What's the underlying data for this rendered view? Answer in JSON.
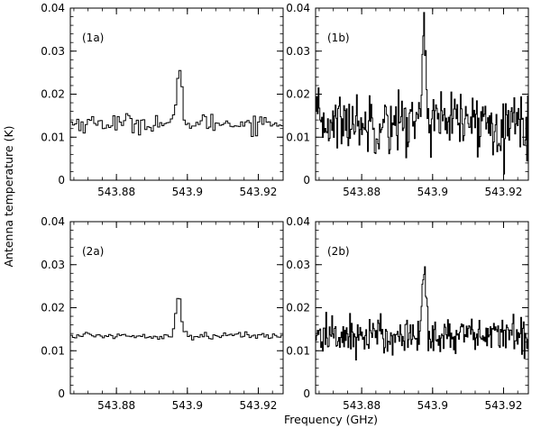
{
  "figure": {
    "xlabel": "Frequency (GHz)",
    "ylabel": "Antenna temperature (K)"
  },
  "chart_data": [
    {
      "type": "line",
      "step": true,
      "panel_label": "(1a)",
      "xlim": [
        543.867,
        543.927
      ],
      "ylim": [
        0,
        0.04
      ],
      "xticks": [
        543.88,
        543.9,
        543.92
      ],
      "xtick_labels": [
        "543.88",
        "543.9",
        "543.92"
      ],
      "yticks": [
        0,
        0.01,
        0.02,
        0.03,
        0.04
      ],
      "ytick_labels": [
        "0",
        "0.01",
        "0.02",
        "0.03",
        "0.04"
      ],
      "line_center": 543.8975,
      "line_peak": 0.0243,
      "baseline": 0.0133,
      "noise": 0.0011,
      "x_start": 543.867,
      "x_step": 0.0006,
      "n_points": 100
    },
    {
      "type": "line",
      "step": true,
      "panel_label": "(1b)",
      "xlim": [
        543.867,
        543.927
      ],
      "ylim": [
        0,
        0.04
      ],
      "xticks": [
        543.88,
        543.9,
        543.92
      ],
      "xtick_labels": [
        "543.88",
        "543.9",
        "543.92"
      ],
      "yticks": [
        0,
        0.01,
        0.02,
        0.03,
        0.04
      ],
      "ytick_labels": [
        "0",
        "0.01",
        "0.02",
        "0.03",
        "0.04"
      ],
      "line_center": 543.8975,
      "line_peak": 0.0365,
      "baseline": 0.0135,
      "noise": 0.0034,
      "x_start": 543.867,
      "x_step": 0.00024,
      "n_points": 250
    },
    {
      "type": "line",
      "step": true,
      "panel_label": "(2a)",
      "xlim": [
        543.867,
        543.927
      ],
      "ylim": [
        0,
        0.04
      ],
      "xticks": [
        543.88,
        543.9,
        543.92
      ],
      "xtick_labels": [
        "543.88",
        "543.9",
        "543.92"
      ],
      "yticks": [
        0,
        0.01,
        0.02,
        0.03,
        0.04
      ],
      "ytick_labels": [
        "0",
        "0.01",
        "0.02",
        "0.03",
        "0.04"
      ],
      "line_center": 543.8972,
      "line_peak": 0.023,
      "baseline": 0.0135,
      "noise": 0.0004,
      "x_start": 543.867,
      "x_step": 0.0006,
      "n_points": 100
    },
    {
      "type": "line",
      "step": true,
      "panel_label": "(2b)",
      "xlim": [
        543.867,
        543.927
      ],
      "ylim": [
        0,
        0.04
      ],
      "xticks": [
        543.88,
        543.9,
        543.92
      ],
      "xtick_labels": [
        "543.88",
        "543.9",
        "543.92"
      ],
      "yticks": [
        0,
        0.01,
        0.02,
        0.03,
        0.04
      ],
      "ytick_labels": [
        "0",
        "0.01",
        "0.02",
        "0.03",
        "0.04"
      ],
      "line_center": 543.8975,
      "line_peak": 0.0294,
      "baseline": 0.0135,
      "noise": 0.0022,
      "x_start": 543.867,
      "x_step": 0.00024,
      "n_points": 250
    }
  ]
}
